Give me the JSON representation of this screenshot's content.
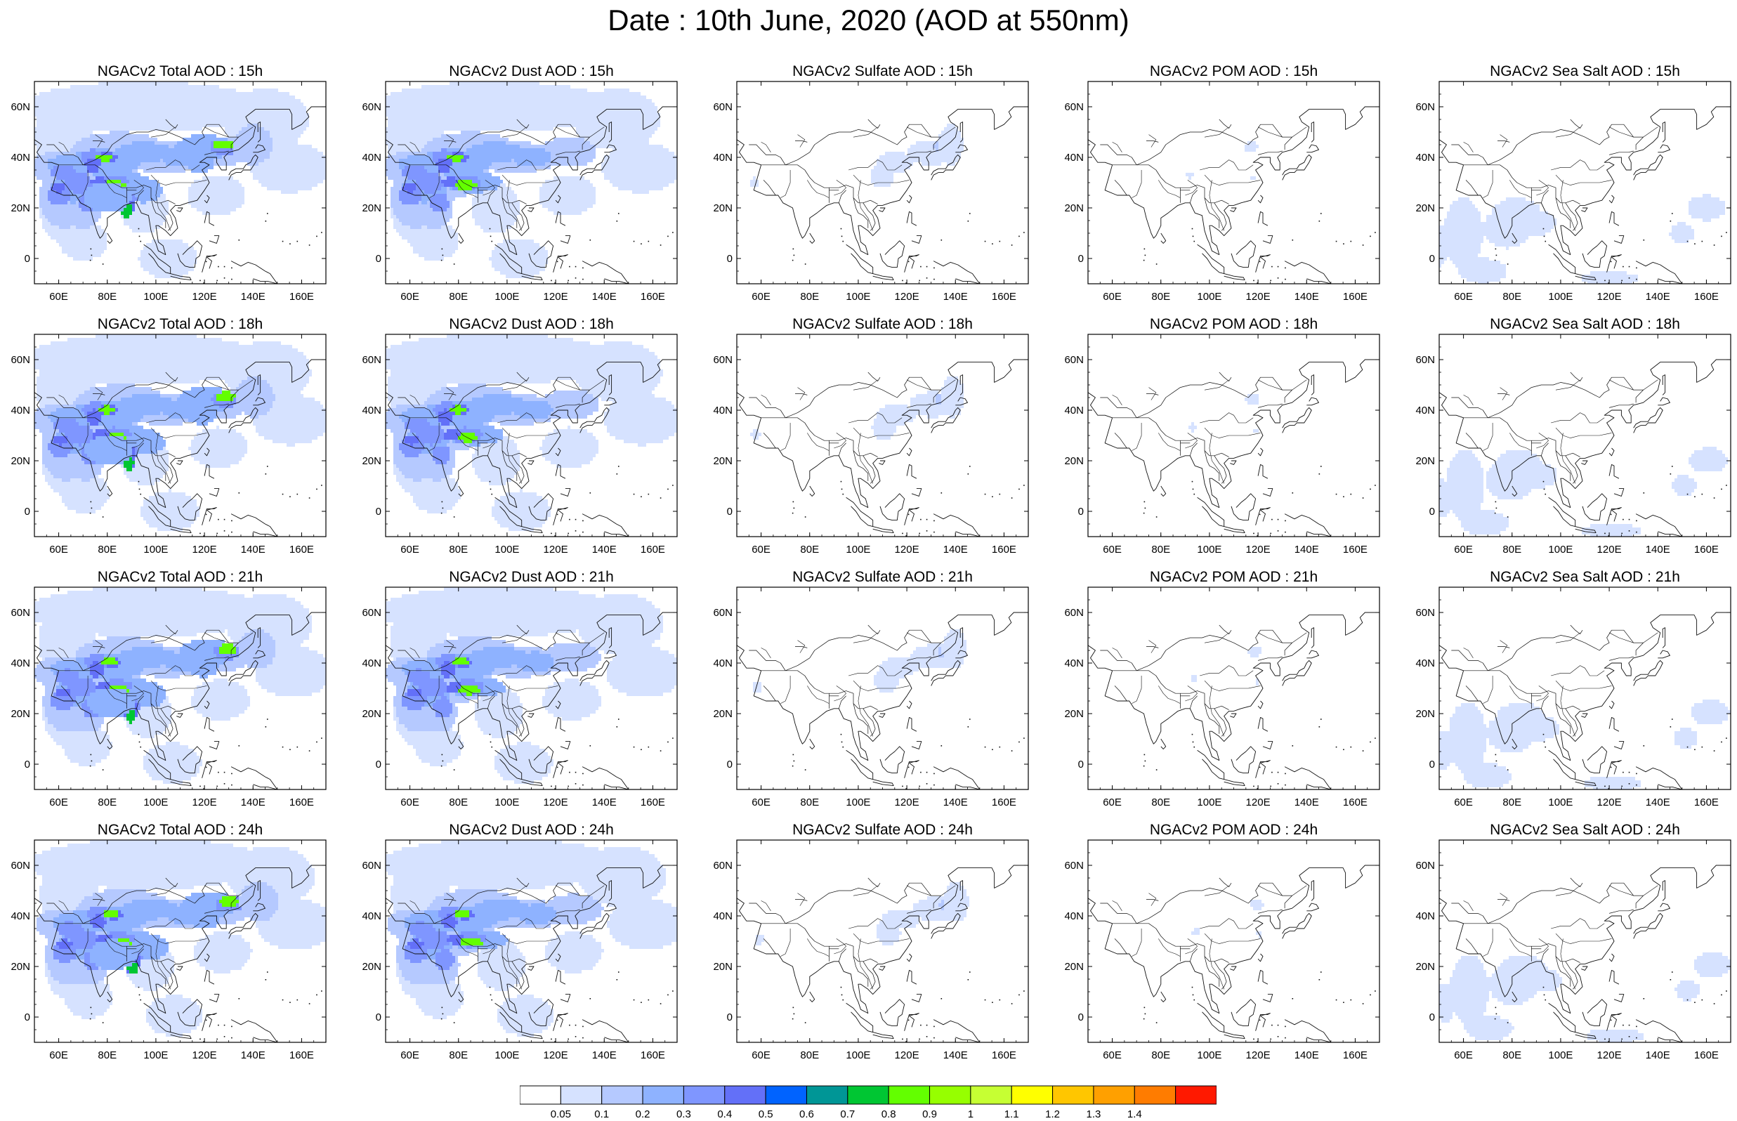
{
  "title": "Date : 10th June, 2020 (AOD at 550nm)",
  "hours": [
    "15h",
    "18h",
    "21h",
    "24h"
  ],
  "species": [
    "total",
    "dust",
    "sulfate",
    "pom",
    "seasalt"
  ],
  "panels": [
    [
      "NGACv2 Total AOD : 15h",
      "NGACv2 Dust AOD : 15h",
      "NGACv2 Sulfate AOD : 15h",
      "NGACv2 POM AOD : 15h",
      "NGACv2 Sea Salt AOD : 15h"
    ],
    [
      "NGACv2 Total AOD : 18h",
      "NGACv2 Dust AOD : 18h",
      "NGACv2 Sulfate AOD : 18h",
      "NGACv2 POM AOD : 18h",
      "NGACv2 Sea Salt AOD : 18h"
    ],
    [
      "NGACv2 Total AOD : 21h",
      "NGACv2 Dust AOD : 21h",
      "NGACv2 Sulfate AOD : 21h",
      "NGACv2 POM AOD : 21h",
      "NGACv2 Sea Salt AOD : 21h"
    ],
    [
      "NGACv2 Total AOD : 24h",
      "NGACv2 Dust AOD : 24h",
      "NGACv2 Sulfate AOD : 24h",
      "NGACv2 POM AOD : 24h",
      "NGACv2 Sea Salt  AOD : 24h"
    ]
  ],
  "map": {
    "lon_range": [
      50,
      170
    ],
    "lat_range": [
      -10,
      70
    ],
    "lon_ticks": [
      "60E",
      "80E",
      "100E",
      "120E",
      "140E",
      "160E"
    ],
    "lat_ticks": [
      "60N",
      "40N",
      "20N",
      "0"
    ]
  },
  "colorbar": {
    "labels": [
      "0.05",
      "0.1",
      "0.2",
      "0.3",
      "0.4",
      "0.5",
      "0.6",
      "0.7",
      "0.8",
      "0.9",
      "1",
      "1.1",
      "1.2",
      "1.3",
      "1.4"
    ],
    "colors": [
      "#ffffff",
      "#d6e2ff",
      "#b5c9ff",
      "#8eb2ff",
      "#7f96ff",
      "#6370f8",
      "#0063ff",
      "#009696",
      "#00c633",
      "#63ff00",
      "#96ff00",
      "#c6ff33",
      "#ffff00",
      "#ffc600",
      "#ffa000",
      "#ff7c00",
      "#ff1900"
    ]
  }
}
